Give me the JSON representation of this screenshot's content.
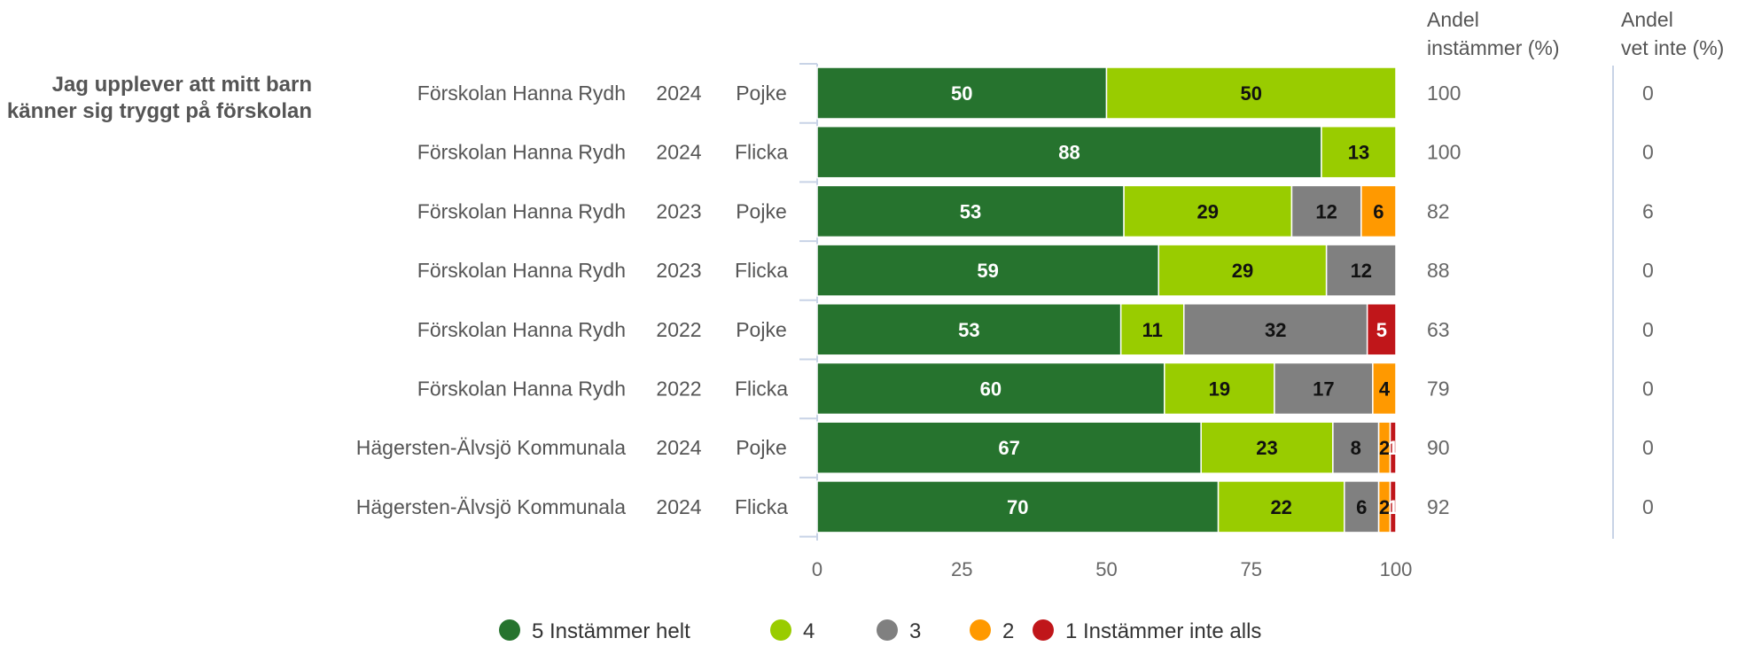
{
  "chart_data": {
    "type": "bar",
    "stacked": true,
    "orientation": "horizontal",
    "question": "Jag upplever att mitt barn känner sig tryggt på förskolan",
    "rows": [
      {
        "school": "Förskolan Hanna Rydh",
        "year": "2024",
        "gender": "Pojke",
        "andel_instammer": "100",
        "andel_vet_inte": "0"
      },
      {
        "school": "Förskolan Hanna Rydh",
        "year": "2024",
        "gender": "Flicka",
        "andel_instammer": "100",
        "andel_vet_inte": "0"
      },
      {
        "school": "Förskolan Hanna Rydh",
        "year": "2023",
        "gender": "Pojke",
        "andel_instammer": "82",
        "andel_vet_inte": "6"
      },
      {
        "school": "Förskolan Hanna Rydh",
        "year": "2023",
        "gender": "Flicka",
        "andel_instammer": "88",
        "andel_vet_inte": "0"
      },
      {
        "school": "Förskolan Hanna Rydh",
        "year": "2022",
        "gender": "Pojke",
        "andel_instammer": "63",
        "andel_vet_inte": "0"
      },
      {
        "school": "Förskolan Hanna Rydh",
        "year": "2022",
        "gender": "Flicka",
        "andel_instammer": "79",
        "andel_vet_inte": "0"
      },
      {
        "school": "Hägersten-Älvsjö Kommunala",
        "year": "2024",
        "gender": "Pojke",
        "andel_instammer": "90",
        "andel_vet_inte": "0"
      },
      {
        "school": "Hägersten-Älvsjö Kommunala",
        "year": "2024",
        "gender": "Flicka",
        "andel_instammer": "92",
        "andel_vet_inte": "0"
      }
    ],
    "series": [
      {
        "name": "5 Instämmer helt",
        "color": "#26732e",
        "label_color": "#ffffff",
        "values": [
          50,
          88,
          53,
          59,
          53,
          60,
          67,
          70
        ]
      },
      {
        "name": "4",
        "color": "#99cc00",
        "label_color": "#111111",
        "values": [
          50,
          13,
          29,
          29,
          11,
          19,
          23,
          22
        ]
      },
      {
        "name": "3",
        "color": "#808080",
        "label_color": "#111111",
        "values": [
          0,
          0,
          12,
          12,
          32,
          17,
          8,
          6
        ]
      },
      {
        "name": "2",
        "color": "#ff9900",
        "label_color": "#111111",
        "values": [
          0,
          0,
          6,
          0,
          0,
          4,
          2,
          2
        ]
      },
      {
        "name": "1 Instämmer inte alls",
        "color": "#c0161a",
        "label_color": "#ffffff",
        "values": [
          0,
          0,
          0,
          0,
          5,
          0,
          1,
          1
        ]
      }
    ],
    "columns": {
      "instammer_header": [
        "Andel",
        "instämmer (%)"
      ],
      "vet_inte_header": [
        "Andel",
        "vet inte (%)"
      ]
    },
    "xlim": [
      0,
      100
    ],
    "xticks": [
      "0",
      "25",
      "50",
      "75",
      "100"
    ],
    "legend_position": "bottom",
    "grid": false
  }
}
